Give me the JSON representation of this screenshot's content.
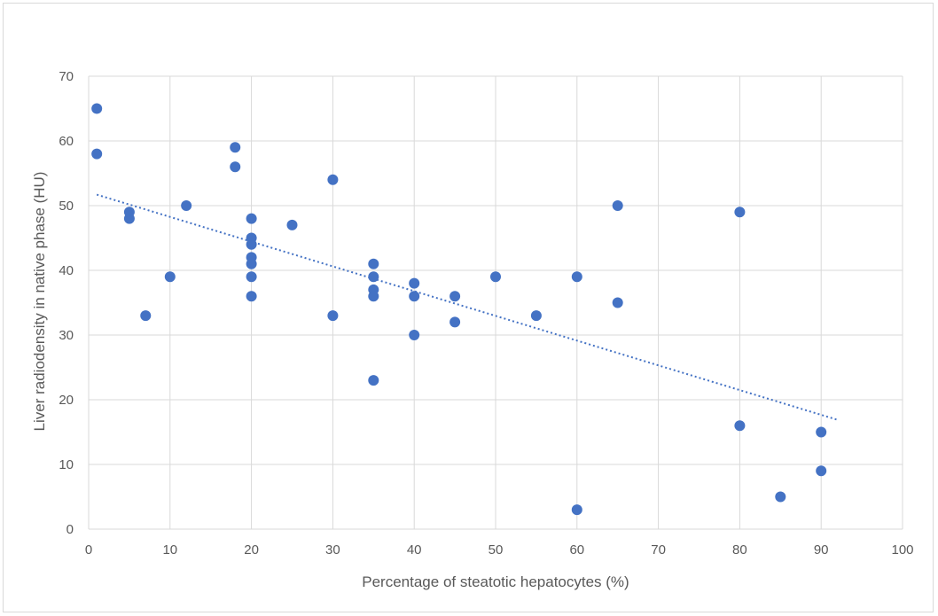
{
  "chart_data": {
    "type": "scatter",
    "xlabel": "Percentage of steatotic hepatocytes (%)",
    "ylabel": "Liver radiodensity in native phase (HU)",
    "xlim": [
      0,
      100
    ],
    "ylim": [
      0,
      70
    ],
    "x_ticks": [
      "0",
      "10",
      "20",
      "30",
      "40",
      "50",
      "60",
      "70",
      "80",
      "90",
      "100"
    ],
    "y_ticks": [
      "0",
      "10",
      "20",
      "30",
      "40",
      "50",
      "60",
      "70"
    ],
    "grid": true,
    "legend": "none",
    "colors": {
      "points": "#4472c4",
      "trendline": "#4472c4",
      "grid": "#d9d9d9",
      "text": "#595959"
    },
    "series": [
      {
        "points": [
          [
            1,
            65
          ],
          [
            1,
            58
          ],
          [
            5,
            49
          ],
          [
            5,
            48
          ],
          [
            7,
            33
          ],
          [
            10,
            39
          ],
          [
            12,
            50
          ],
          [
            18,
            59
          ],
          [
            18,
            56
          ],
          [
            20,
            48
          ],
          [
            20,
            45
          ],
          [
            20,
            44
          ],
          [
            20,
            42
          ],
          [
            20,
            41
          ],
          [
            20,
            39
          ],
          [
            20,
            36
          ],
          [
            25,
            47
          ],
          [
            30,
            54
          ],
          [
            30,
            33
          ],
          [
            35,
            41
          ],
          [
            35,
            39
          ],
          [
            35,
            37
          ],
          [
            35,
            36
          ],
          [
            35,
            23
          ],
          [
            40,
            38
          ],
          [
            40,
            36
          ],
          [
            40,
            30
          ],
          [
            45,
            36
          ],
          [
            45,
            32
          ],
          [
            50,
            39
          ],
          [
            55,
            33
          ],
          [
            60,
            39
          ],
          [
            60,
            3
          ],
          [
            65,
            50
          ],
          [
            65,
            35
          ],
          [
            80,
            49
          ],
          [
            80,
            16
          ],
          [
            85,
            5
          ],
          [
            90,
            15
          ],
          [
            90,
            9
          ]
        ]
      }
    ],
    "trendline": {
      "type": "linear",
      "style": "dotted",
      "x_range": [
        1,
        92
      ],
      "y_at_start": 51.7,
      "y_at_end": 16.9
    }
  }
}
